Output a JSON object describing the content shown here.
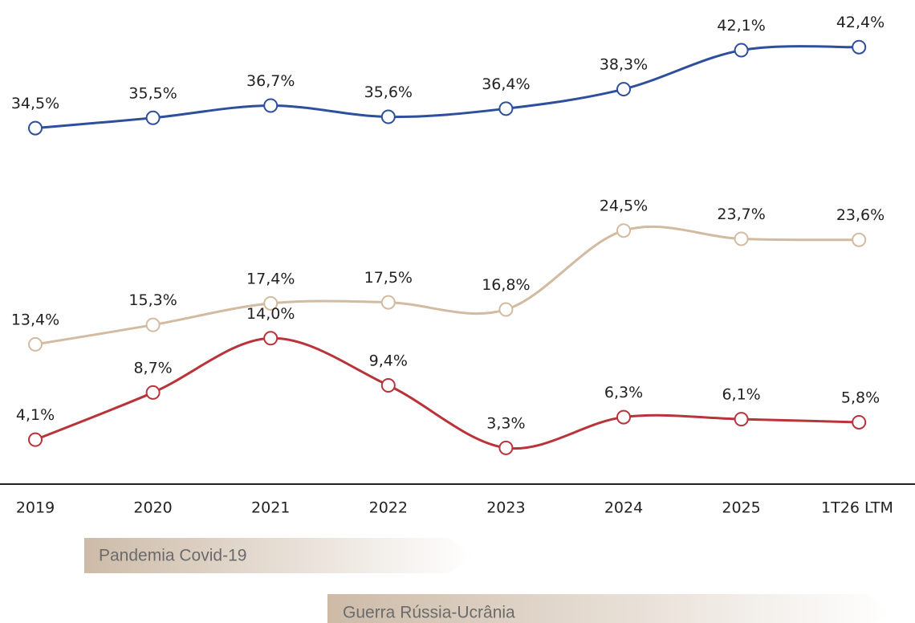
{
  "chart_data": {
    "type": "line",
    "categories": [
      "2019",
      "2020",
      "2021",
      "2022",
      "2023",
      "2024",
      "2025",
      "1T26 LTM"
    ],
    "series": [
      {
        "color": "#2e4f9b",
        "values": [
          34.5,
          35.5,
          36.7,
          35.6,
          36.4,
          38.3,
          42.1,
          42.4
        ],
        "value_labels": [
          "34,5%",
          "35,5%",
          "36,7%",
          "35,6%",
          "36,4%",
          "38,3%",
          "42,1%",
          "42,4%"
        ]
      },
      {
        "color": "#d2bba1",
        "values": [
          13.4,
          15.3,
          17.4,
          17.5,
          16.8,
          24.5,
          23.7,
          23.6
        ],
        "value_labels": [
          "13,4%",
          "15,3%",
          "17,4%",
          "17,5%",
          "16,8%",
          "24,5%",
          "23,7%",
          "23,6%"
        ]
      },
      {
        "color": "#b8343a",
        "values": [
          4.1,
          8.7,
          14.0,
          9.4,
          3.3,
          6.3,
          6.1,
          5.8
        ],
        "value_labels": [
          "4,1%",
          "8,7%",
          "14,0%",
          "9,4%",
          "3,3%",
          "6,3%",
          "6,1%",
          "5,8%"
        ]
      }
    ],
    "ylim": [
      0,
      47
    ],
    "annotations": [
      {
        "text": "Pandemia Covid-19"
      },
      {
        "text": "Guerra Rússia-Ucrânia"
      }
    ]
  }
}
